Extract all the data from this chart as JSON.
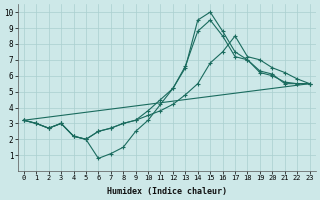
{
  "xlabel": "Humidex (Indice chaleur)",
  "xlim": [
    -0.5,
    23.5
  ],
  "ylim": [
    0,
    10.5
  ],
  "xticks": [
    0,
    1,
    2,
    3,
    4,
    5,
    6,
    7,
    8,
    9,
    10,
    11,
    12,
    13,
    14,
    15,
    16,
    17,
    18,
    19,
    20,
    21,
    22,
    23
  ],
  "yticks": [
    1,
    2,
    3,
    4,
    5,
    6,
    7,
    8,
    9,
    10
  ],
  "background_color": "#cde8e8",
  "grid_color": "#aacfcf",
  "line_color": "#1a6b5e",
  "lines": [
    {
      "x": [
        0,
        1,
        2,
        3,
        4,
        5,
        6,
        7,
        8,
        9,
        10,
        11,
        12,
        13,
        14,
        15,
        16,
        17,
        18,
        19,
        20,
        21,
        22,
        23
      ],
      "y": [
        3.2,
        3.0,
        2.7,
        3.0,
        2.2,
        2.0,
        0.8,
        1.1,
        1.5,
        2.5,
        3.2,
        4.2,
        5.2,
        6.5,
        9.5,
        10.0,
        8.8,
        7.5,
        7.0,
        6.3,
        6.1,
        5.5,
        5.5,
        5.5
      ]
    },
    {
      "x": [
        0,
        1,
        2,
        3,
        4,
        5,
        6,
        7,
        8,
        9,
        10,
        11,
        12,
        13,
        14,
        15,
        16,
        17,
        18,
        19,
        20,
        21,
        22,
        23
      ],
      "y": [
        3.2,
        3.0,
        2.7,
        3.0,
        2.2,
        2.0,
        2.5,
        2.7,
        3.0,
        3.2,
        3.8,
        4.5,
        5.2,
        6.6,
        8.8,
        9.5,
        8.5,
        7.2,
        7.0,
        6.2,
        6.0,
        5.6,
        5.5,
        5.5
      ]
    },
    {
      "x": [
        0,
        1,
        2,
        3,
        4,
        5,
        6,
        7,
        8,
        9,
        10,
        11,
        12,
        13,
        14,
        15,
        16,
        17,
        18,
        19,
        20,
        21,
        22,
        23
      ],
      "y": [
        3.2,
        3.0,
        2.7,
        3.0,
        2.2,
        2.0,
        2.5,
        2.7,
        3.0,
        3.2,
        3.5,
        3.8,
        4.2,
        4.8,
        5.5,
        6.8,
        7.5,
        8.5,
        7.2,
        7.0,
        6.5,
        6.2,
        5.8,
        5.5
      ]
    },
    {
      "x": [
        0,
        23
      ],
      "y": [
        3.2,
        5.5
      ]
    }
  ]
}
